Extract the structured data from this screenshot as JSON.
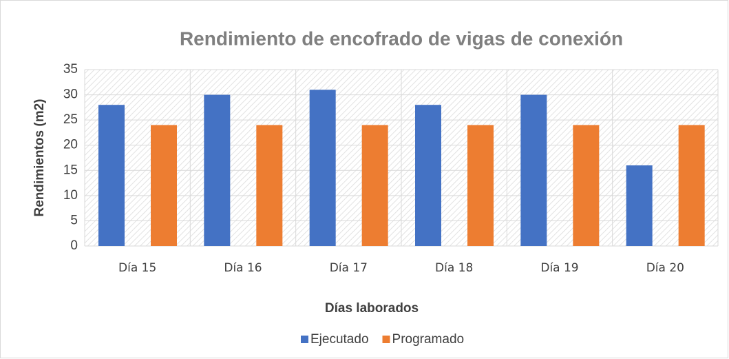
{
  "chart_data": {
    "type": "bar",
    "title": "Rendimiento de encofrado de vigas de conexión",
    "x_label": "Días laborados",
    "y_label": "Rendimientos (m2)",
    "categories": [
      "Día 15",
      "Día 16",
      "Día 17",
      "Día 18",
      "Día 19",
      "Día 20"
    ],
    "series": [
      {
        "name": "Ejecutado",
        "color": "#4472c4",
        "values": [
          28,
          30,
          31,
          28,
          30,
          16
        ]
      },
      {
        "name": "Programado",
        "color": "#ed7d31",
        "values": [
          24,
          24,
          24,
          24,
          24,
          24
        ]
      }
    ],
    "ylim": [
      0,
      35
    ],
    "yticks": [
      0,
      5,
      10,
      15,
      20,
      25,
      30,
      35
    ],
    "grid": true,
    "legend": "bottom"
  }
}
